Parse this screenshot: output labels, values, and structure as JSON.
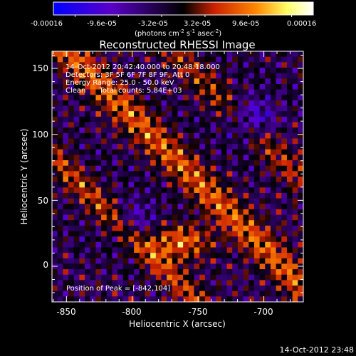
{
  "colorbar": {
    "tick_labels": [
      "-0.00016",
      "-9.6e-05",
      "-3.2e-05",
      "3.2e-05",
      "9.6e-05",
      "0.00016"
    ],
    "unit_prefix": "(photons cm",
    "unit_sup1": "-2",
    "unit_mid": " s",
    "unit_sup2": "-1",
    "unit_mid2": " asec",
    "unit_sup3": "-2",
    "unit_suffix": ")",
    "colors": [
      "#0000ff",
      "#5a00c8",
      "#000000",
      "#cc2200",
      "#ff8800",
      "#ffff66",
      "#ffffff"
    ]
  },
  "chart_data": {
    "type": "heatmap",
    "title": "Reconstructed RHESSI Image",
    "xlabel": "Heliocentric X (arcsec)",
    "ylabel": "Heliocentric Y (arcsec)",
    "xlim": [
      -861,
      -670
    ],
    "ylim": [
      -27,
      163
    ],
    "x_ticks": [
      -850,
      -800,
      -750,
      -700
    ],
    "y_ticks": [
      0,
      50,
      100,
      150
    ],
    "x_tick_labels": [
      "-850",
      "-800",
      "-750",
      "-700"
    ],
    "y_tick_labels": [
      "0",
      "50",
      "100",
      "150"
    ],
    "peak": {
      "x": -842,
      "y": 104
    },
    "annotations": [
      "14-Oct-2012 20:42:40.000 to 20:48:18.000",
      "Detectors: 3F 5F 6F 7F 8F 9F, Att 0",
      "Energy Range: 25.0 - 50.0 keV",
      "Clean      Total counts: 5.84E+03"
    ],
    "peak_label": "Position of Peak = [-842,104]",
    "value_range": [
      -0.00016,
      0.00016
    ]
  },
  "footer": {
    "timestamp": "14-Oct-2012 23:48"
  }
}
